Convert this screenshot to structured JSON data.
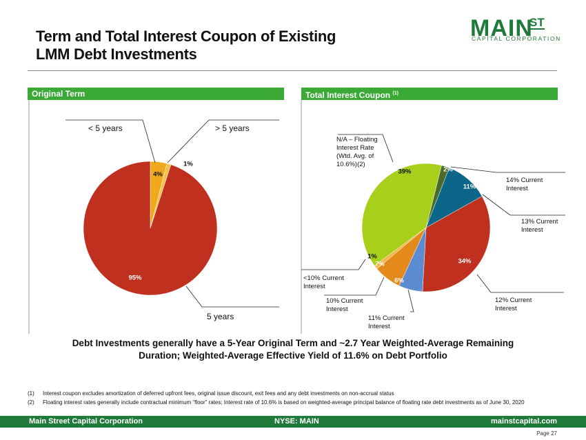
{
  "page": {
    "title_lines": [
      "Term and Total Interest Coupon of Existing",
      "LMM Debt Investments"
    ],
    "logo": {
      "main": "MAIN",
      "st": "ST",
      "sub": "CAPITAL CORPORATION"
    },
    "summary_lines": [
      "Debt Investments generally have a 5-Year Original Term and ~2.7 Year Weighted-Average Remaining",
      "Duration;   Weighted-Average Effective Yield of 11.6% on Debt Portfolio"
    ],
    "footnotes": [
      {
        "mark": "(1)",
        "text": "Interest coupon excludes amortization of deferred upfront fees, original issue discount, exit fees and any debt investments on non-accrual status"
      },
      {
        "mark": "(2)",
        "text": "Floating interest rates generally include contractual minimum “floor” rates; Interest rate of 10.6% is based on weighted-average principal balance of floating rate debt investments as of June 30, 2020"
      }
    ],
    "footer": {
      "left": "Main Street Capital Corporation",
      "center": "NYSE: MAIN",
      "right": "mainstcapital.com",
      "page": "Page  27"
    }
  },
  "chart_data": [
    {
      "type": "pie",
      "title": "Original Term",
      "categories": [
        "< 5 years",
        "> 5 years",
        "5 years"
      ],
      "values": [
        4,
        1,
        95
      ],
      "value_labels": [
        "4%",
        "1%",
        "95%"
      ],
      "colors": [
        "#f0a81c",
        "#f6c04a",
        "#c0301f"
      ]
    },
    {
      "type": "pie",
      "title": "Total Interest Coupon",
      "title_note": "(1)",
      "categories": [
        "14% Current Interest",
        "13% Current Interest",
        "12% Current Interest",
        "11% Current Interest",
        "10% Current Interest",
        "<10% Current Interest",
        "N/A – Floating Interest Rate (Wtd. Avg. of 10.6%)(2)"
      ],
      "values": [
        2,
        11,
        34,
        6,
        7,
        1,
        39
      ],
      "value_labels": [
        "2%",
        "11%",
        "34%",
        "6%",
        "7%",
        "1%",
        "39%"
      ],
      "colors": [
        "#4a6b2a",
        "#0b6689",
        "#c0301f",
        "#5b8bd0",
        "#e48a1c",
        "#f6b54a",
        "#a8cf1a"
      ]
    }
  ]
}
